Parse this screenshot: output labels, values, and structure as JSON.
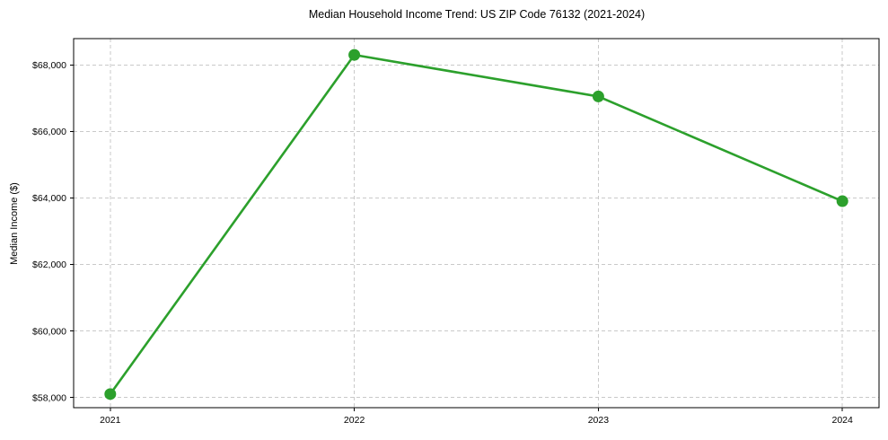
{
  "chart_data": {
    "type": "line",
    "title": "Median Household Income Trend: US ZIP Code 76132 (2021-2024)",
    "xlabel": "",
    "ylabel": "Median Income ($)",
    "categories": [
      "2021",
      "2022",
      "2023",
      "2024"
    ],
    "values": [
      58100,
      68300,
      67050,
      63900
    ],
    "yticks": [
      58000,
      60000,
      62000,
      64000,
      66000,
      68000
    ],
    "ytick_labels": [
      "$58,000",
      "$60,000",
      "$62,000",
      "$64,000",
      "$66,000",
      "$68,000"
    ],
    "ylim": [
      57690,
      68790
    ],
    "grid": true,
    "grid_style": "dashed",
    "legend_position": "none",
    "colors": {
      "line": "#2ca02c",
      "marker": "#2ca02c",
      "grid": "#c9c9c9",
      "spine": "#000000",
      "background": "#ffffff"
    }
  }
}
